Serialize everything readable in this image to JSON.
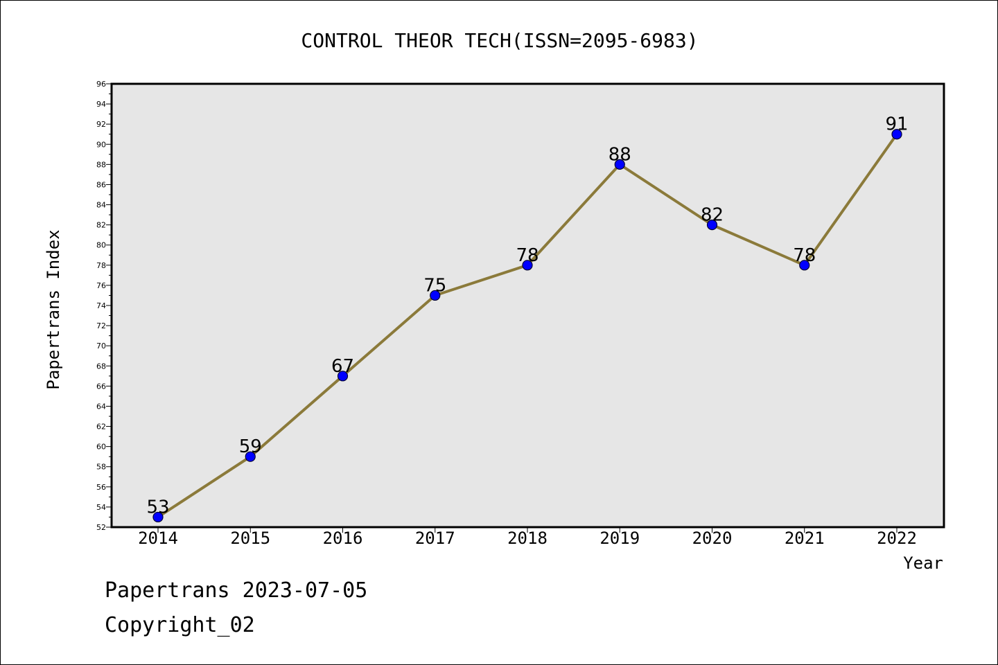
{
  "chart_data": {
    "type": "line",
    "title": "CONTROL THEOR TECH(ISSN=2095-6983)",
    "xlabel": "Year",
    "ylabel": "Papertrans Index",
    "categories": [
      "2014",
      "2015",
      "2016",
      "2017",
      "2018",
      "2019",
      "2020",
      "2021",
      "2022"
    ],
    "series": [
      {
        "values": [
          53,
          59,
          67,
          75,
          78,
          88,
          82,
          78,
          91
        ]
      }
    ],
    "data_labels": [
      "53",
      "59",
      "67",
      "75",
      "78",
      "88",
      "82",
      "78",
      "91"
    ],
    "ylim": [
      52,
      96
    ],
    "ytick_step": 2,
    "grid": false,
    "legend": "none",
    "colors": {
      "plot_background": "#e6e6e6",
      "line": "#8b7a3a",
      "marker": "#0000ff",
      "marker_edge": "#000033",
      "frame": "#000000"
    }
  },
  "footer": {
    "line1": "Papertrans 2023-07-05",
    "line2": "Copyright_02"
  }
}
